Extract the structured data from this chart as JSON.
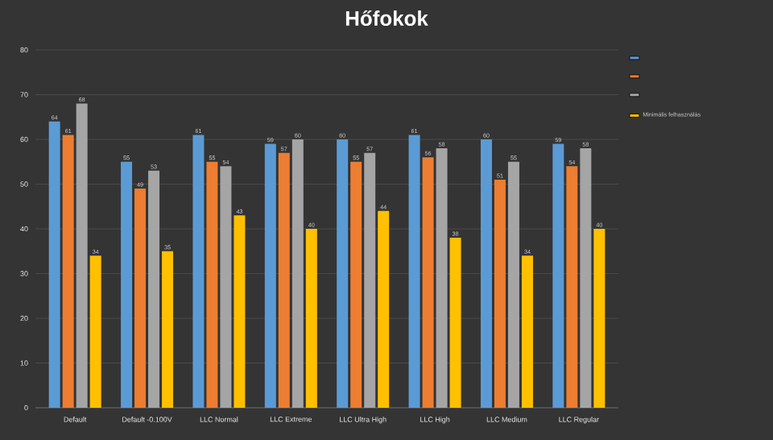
{
  "chart_data": {
    "type": "bar",
    "title": "Hőfokok",
    "categories": [
      "Default",
      "Default -0.100V",
      "LLC Normal",
      "LLC Extreme",
      "LLC Ultra High",
      "LLC High",
      "LLC Medium",
      "LLC Regular"
    ],
    "series": [
      {
        "color": "#5b9bd5",
        "values": [
          64,
          55,
          61,
          59,
          60,
          61,
          60,
          59
        ]
      },
      {
        "color": "#ed7d31",
        "values": [
          61,
          49,
          55,
          57,
          55,
          56,
          51,
          54
        ]
      },
      {
        "color": "#a5a5a5",
        "values": [
          68,
          53,
          54,
          60,
          57,
          58,
          55,
          58
        ]
      },
      {
        "name": "Minimális felhasználás",
        "color": "#ffc000",
        "values": [
          34,
          35,
          43,
          40,
          44,
          38,
          34,
          40
        ]
      }
    ],
    "ylim": [
      0,
      80
    ],
    "yticks": [
      0,
      10,
      20,
      30,
      40,
      50,
      60,
      70,
      80
    ],
    "grid": "y",
    "legend": "top right",
    "data_labels": true
  }
}
